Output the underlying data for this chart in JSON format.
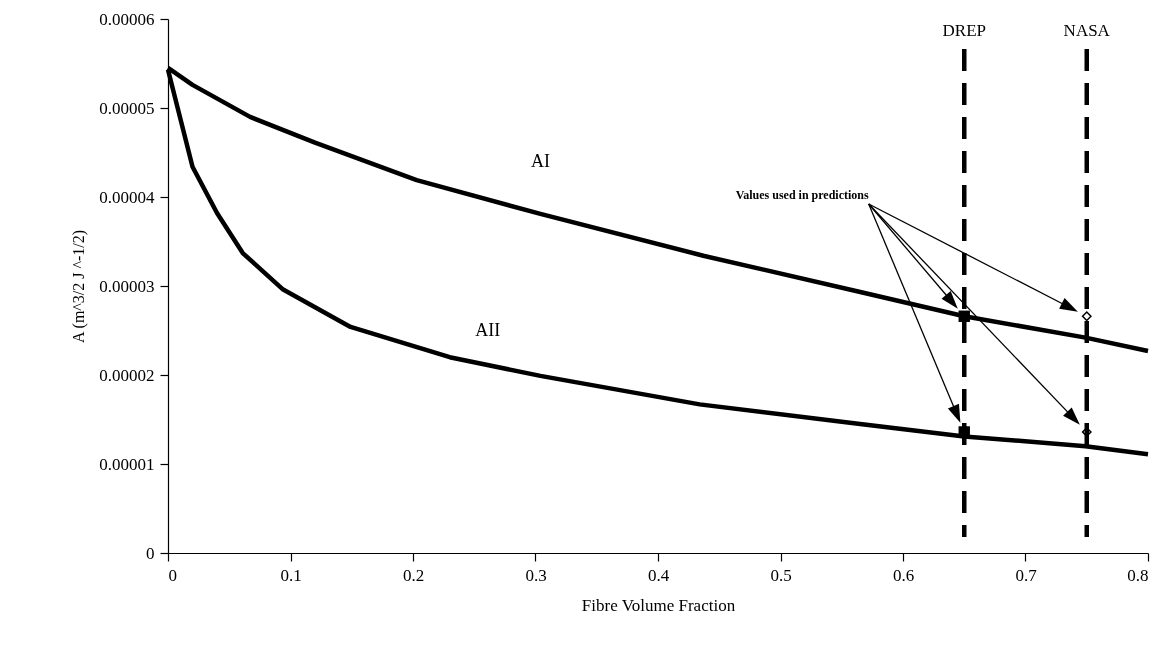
{
  "chart_data": {
    "type": "line",
    "xlabel": "Fibre Volume Fraction",
    "ylabel": "A (m^3/2 J ^-1/2)",
    "xlim": [
      0,
      0.8
    ],
    "xticks": [
      0,
      0.1,
      0.2,
      0.3,
      0.4,
      0.5,
      0.6,
      0.7,
      0.8
    ],
    "ylim": [
      0,
      6e-05
    ],
    "yticks": [
      0,
      {
        "value": 1e-05,
        "label": "0.00001"
      },
      {
        "value": 2e-05,
        "label": "0.00002"
      },
      {
        "value": 3e-05,
        "label": "0.00003"
      },
      {
        "value": 4e-05,
        "label": "0.00004"
      },
      {
        "value": 5e-05,
        "label": "0.00005"
      },
      {
        "value": 6e-05,
        "label": "0.00006"
      }
    ],
    "grid": false,
    "legend": false,
    "line_style": "solid",
    "marker": "none",
    "series": [
      {
        "name": "AI",
        "type": "line",
        "color": "#000000",
        "x": [
          0,
          0.02,
          0.067,
          0.12,
          0.203,
          0.304,
          0.437,
          0.566,
          0.65,
          0.749,
          0.8
        ],
        "values": [
          5.45e-05,
          5.26e-05,
          4.9e-05,
          4.61e-05,
          4.19e-05,
          3.81e-05,
          3.34e-05,
          2.93e-05,
          2.66e-05,
          2.42e-05,
          2.27e-05
        ]
      },
      {
        "name": "AII",
        "color": "#000000",
        "x": [
          0,
          0.02,
          0.04,
          0.061,
          0.094,
          0.149,
          0.23,
          0.304,
          0.434,
          0.565,
          0.65,
          0.749,
          0.8
        ],
        "values": [
          5.43e-05,
          4.34e-05,
          3.82e-05,
          3.37e-05,
          2.96e-05,
          2.54e-05,
          2.2e-05,
          1.99e-05,
          1.67e-05,
          1.45e-05,
          1.31e-05,
          1.2e-05,
          1.11e-05
        ]
      },
      {
        "type": "scatter",
        "color": "#000000",
        "marker": "square",
        "x": [
          0.65,
          0.65
        ],
        "values": [
          2.66e-05,
          1.36e-05
        ]
      },
      {
        "type": "scatter",
        "color": "#000000",
        "marker": "diamond",
        "x": [
          0.75,
          0.75
        ],
        "values": [
          2.66e-05,
          1.36e-05
        ]
      }
    ],
    "ref_lines": [
      {
        "axis": "x",
        "value": 0.65,
        "label": "DREP",
        "line_style": "dashed",
        "color": "#000000"
      },
      {
        "axis": "x",
        "value": 0.75,
        "label": "NASA",
        "line_style": "dashed",
        "color": "#000000"
      }
    ],
    "annotations": [
      "Values used in predictions"
    ]
  }
}
